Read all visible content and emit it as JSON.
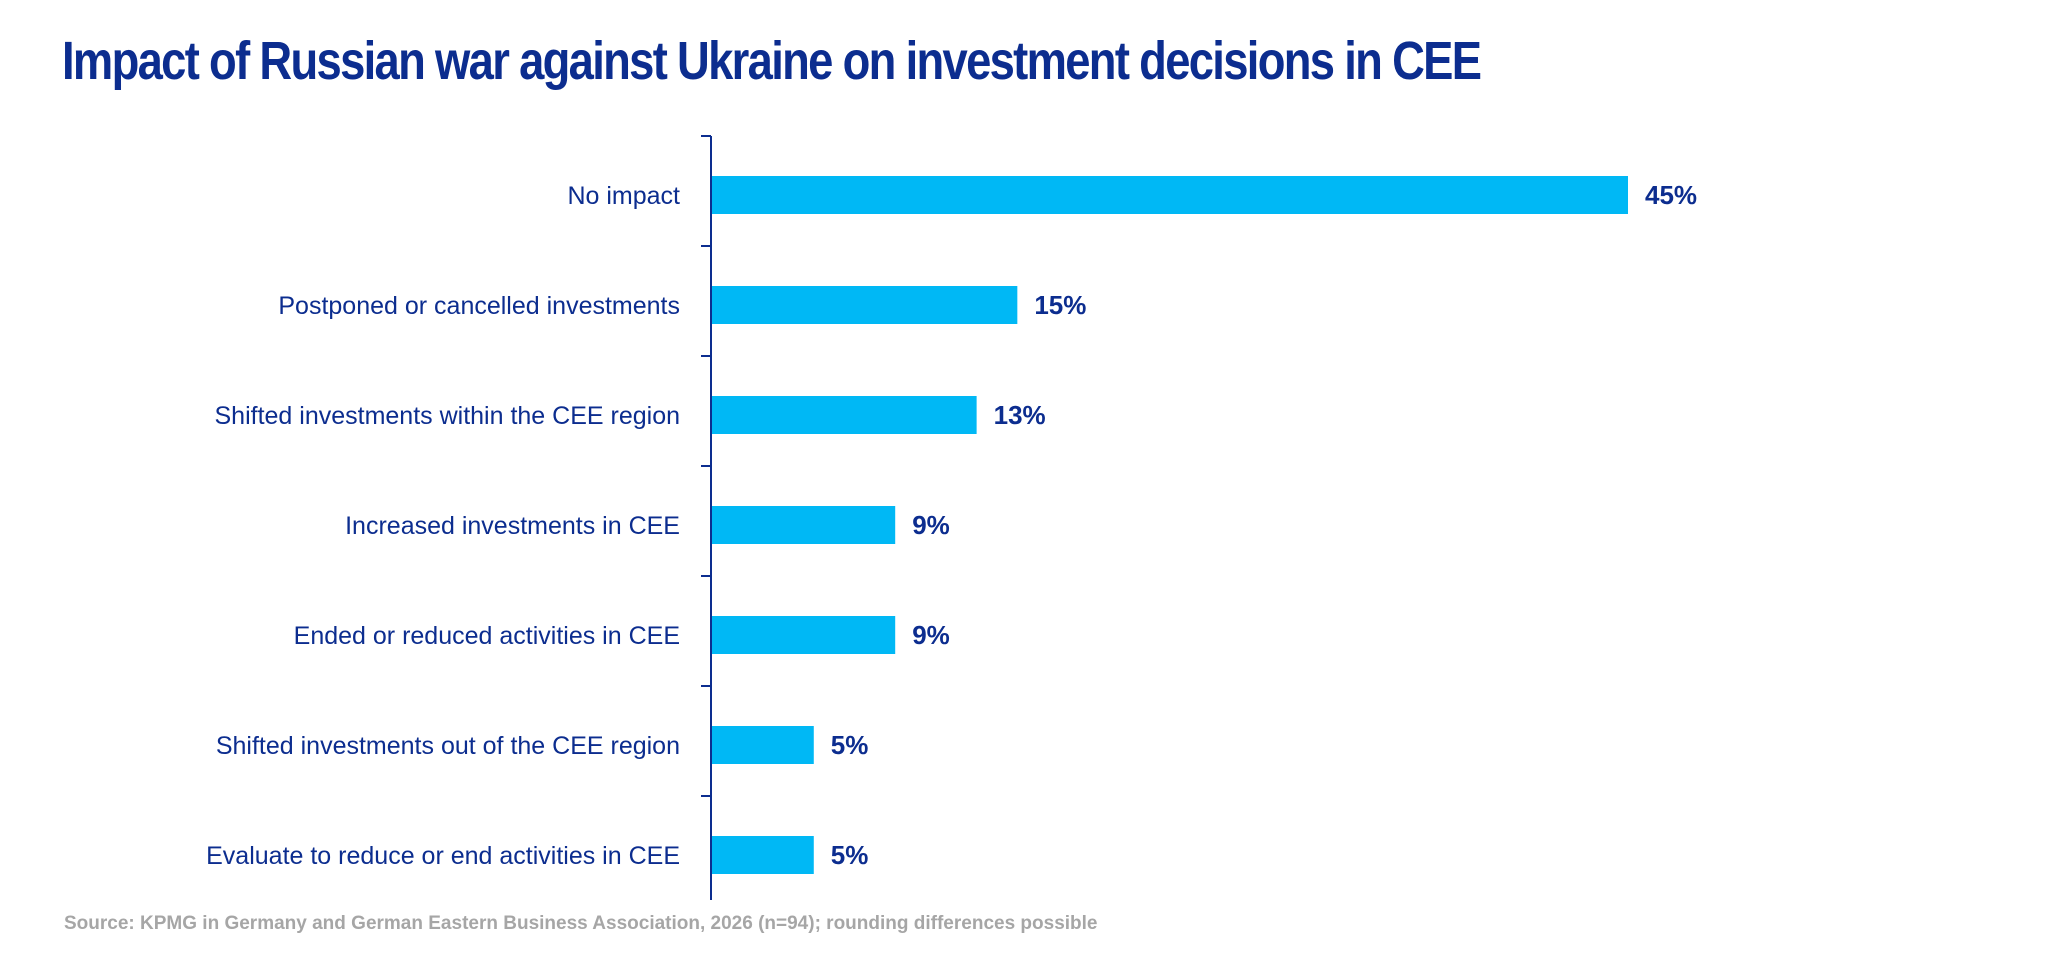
{
  "title": "Impact of Russian war against Ukraine on investment decisions in CEE",
  "source": "Source: KPMG in Germany and German Eastern Business Association, 2026 (n=94); rounding differences possible",
  "colors": {
    "title": "#0c2d8f",
    "bar": "#00b8f5",
    "axis": "#0c2d8f",
    "labels": "#0c2d8f",
    "source": "#a6a6a6"
  },
  "chart_data": {
    "type": "bar",
    "orientation": "horizontal",
    "categories": [
      "No impact",
      "Postponed or cancelled investments",
      "Shifted investments within the CEE region",
      "Increased investments in CEE",
      "Ended or reduced activities in CEE",
      "Shifted investments out of the CEE region",
      "Evaluate to reduce or end activities in CEE"
    ],
    "values": [
      45,
      15,
      13,
      9,
      9,
      5,
      5
    ],
    "value_labels": [
      "45%",
      "15%",
      "13%",
      "9%",
      "9%",
      "5%",
      "5%"
    ],
    "unit": "%",
    "xlim": [
      0,
      45
    ],
    "grid": false,
    "legend": "none"
  }
}
